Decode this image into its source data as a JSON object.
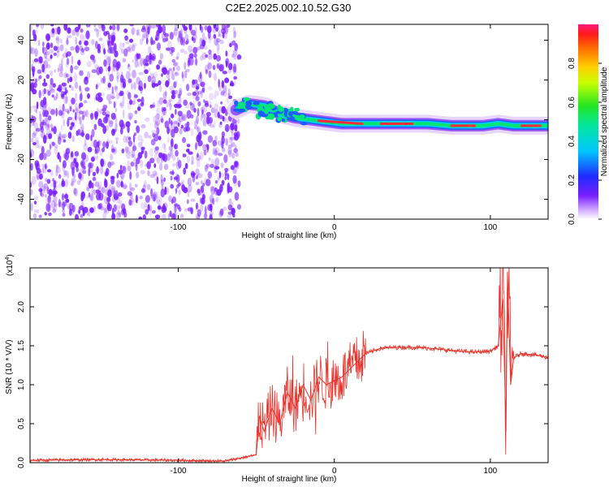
{
  "title": "C2E2.2025.002.10.52.G30",
  "colors": {
    "snr_line": "#e8322a",
    "scatter_fill": "#7a1fff",
    "ridge_core": "#ff2a3a",
    "ridge_mid": "#00e676",
    "ridge_edge": "#1f5cff"
  },
  "chart_data": [
    {
      "type": "heatmap",
      "xlabel": "Height of straight line (km)",
      "ylabel": "Frequency (Hz)",
      "xlim": [
        -195,
        137
      ],
      "ylim": [
        -50,
        48
      ],
      "xticks": [
        -100,
        0,
        100
      ],
      "xtick_labels": [
        "-100",
        "0",
        "100"
      ],
      "yticks": [
        -40,
        -20,
        0,
        20,
        40
      ],
      "ytick_labels": [
        "-40",
        "-20",
        "0",
        "20",
        "40"
      ],
      "noise_region_x": [
        -195,
        -63
      ],
      "ridge": {
        "x": [
          -63,
          -55,
          -45,
          -35,
          -25,
          -15,
          -5,
          5,
          20,
          40,
          60,
          75,
          85,
          95,
          105,
          115,
          125,
          137
        ],
        "freq": [
          5,
          8,
          7,
          3,
          1,
          0,
          -1,
          -2,
          -2,
          -2,
          -2,
          -3,
          -3,
          -3,
          -2,
          -3,
          -3,
          -3
        ]
      },
      "colorbar": {
        "label": "Normalized spectral amplitude",
        "ticks": [
          0.0,
          0.2,
          0.4,
          0.6,
          0.8
        ],
        "tick_labels": [
          "0.0",
          "0.2",
          "0.4",
          "0.6",
          "0.8"
        ],
        "range": [
          0,
          1
        ]
      },
      "grid": false,
      "legend": "none"
    },
    {
      "type": "line",
      "xlabel": "Height of straight line (km)",
      "ylabel": "SNR (10 * V/V)",
      "scale_label": "(x10",
      "scale_exponent": "4",
      "scale_close": ")",
      "xlim": [
        -195,
        137
      ],
      "ylim": [
        0,
        2.5
      ],
      "xticks": [
        -100,
        0,
        100
      ],
      "xtick_labels": [
        "-100",
        "0",
        "100"
      ],
      "yticks": [
        0.0,
        0.5,
        1.0,
        1.5,
        2.0
      ],
      "ytick_labels": [
        "0.0",
        "0.5",
        "1.0",
        "1.5",
        "2.0"
      ],
      "series": [
        {
          "x": [
            -195,
            -150,
            -100,
            -70,
            -50,
            -48,
            -45,
            -40,
            -35,
            -30,
            -25,
            -20,
            -15,
            -10,
            -5,
            0,
            5,
            10,
            15,
            20,
            30,
            40,
            50,
            60,
            70,
            80,
            90,
            100,
            105,
            108,
            110,
            111,
            113,
            115,
            120,
            130,
            137
          ],
          "y": [
            0.03,
            0.04,
            0.03,
            0.02,
            0.1,
            0.6,
            0.4,
            0.7,
            0.5,
            0.9,
            0.7,
            1.0,
            0.8,
            1.1,
            1.0,
            1.05,
            1.1,
            1.2,
            1.3,
            1.4,
            1.47,
            1.48,
            1.48,
            1.47,
            1.45,
            1.43,
            1.42,
            1.43,
            1.5,
            2.1,
            0.4,
            2.45,
            1.0,
            1.35,
            1.4,
            1.38,
            1.35
          ]
        }
      ],
      "grid": false,
      "legend": "none"
    }
  ]
}
